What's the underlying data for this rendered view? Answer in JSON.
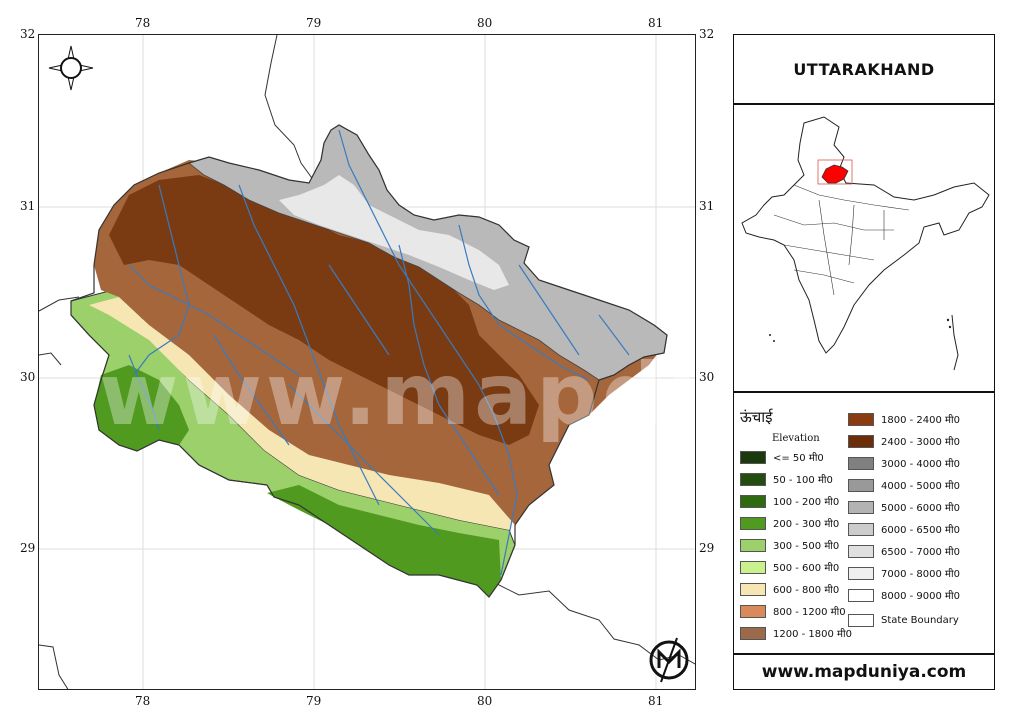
{
  "map": {
    "top_ticks": [
      "78",
      "79",
      "80",
      "81"
    ],
    "bottom_ticks": [
      "78",
      "79",
      "80",
      "81"
    ],
    "left_ticks": [
      "32",
      "31",
      "30",
      "29"
    ],
    "right_ticks": [
      "32",
      "31",
      "30",
      "29"
    ],
    "watermark": "www.mapduniya.com",
    "compass_icon": "compass-rose-icon",
    "logo_icon": "mapduniya-logo-icon"
  },
  "title_box": {
    "title": "UTTARAKHAND"
  },
  "locator": {
    "highlight_color": "#ff0000"
  },
  "legend": {
    "heading": "ऊंचाई",
    "subheading": "Elevation",
    "items": [
      {
        "label": "<= 50 मी0",
        "color": "#1a3a0d"
      },
      {
        "label": "50 - 100 मी0",
        "color": "#234d0e"
      },
      {
        "label": "100 - 200 मी0",
        "color": "#2f6a10"
      },
      {
        "label": "200 - 300 मी0",
        "color": "#4f9a1f"
      },
      {
        "label": "300 - 500 मी0",
        "color": "#9bd06a"
      },
      {
        "label": "500 - 600 मी0",
        "color": "#c9f28e"
      },
      {
        "label": "600 - 800 मी0",
        "color": "#f5e6b4"
      },
      {
        "label": "800 - 1200 मी0",
        "color": "#d9895a"
      },
      {
        "label": "1200 - 1800 मी0",
        "color": "#9b6a4a"
      },
      {
        "label": "1800 - 2400 मी0",
        "color": "#8a3c10"
      },
      {
        "label": "2400 - 3000 मी0",
        "color": "#6b2e08"
      },
      {
        "label": "3000 - 4000 मी0",
        "color": "#808080"
      },
      {
        "label": "4000 - 5000 मी0",
        "color": "#999999"
      },
      {
        "label": "5000 - 6000 मी0",
        "color": "#b3b3b3"
      },
      {
        "label": "6000 - 6500 मी0",
        "color": "#cccccc"
      },
      {
        "label": "6500 - 7000 मी0",
        "color": "#e0e0e0"
      },
      {
        "label": "7000 - 8000 मी0",
        "color": "#efefef"
      },
      {
        "label": "8000 - 9000 मी0",
        "color": "#ffffff"
      },
      {
        "label": "State Boundary",
        "color": "#ffffff"
      }
    ]
  },
  "footer": {
    "website": "www.mapduniya.com"
  }
}
